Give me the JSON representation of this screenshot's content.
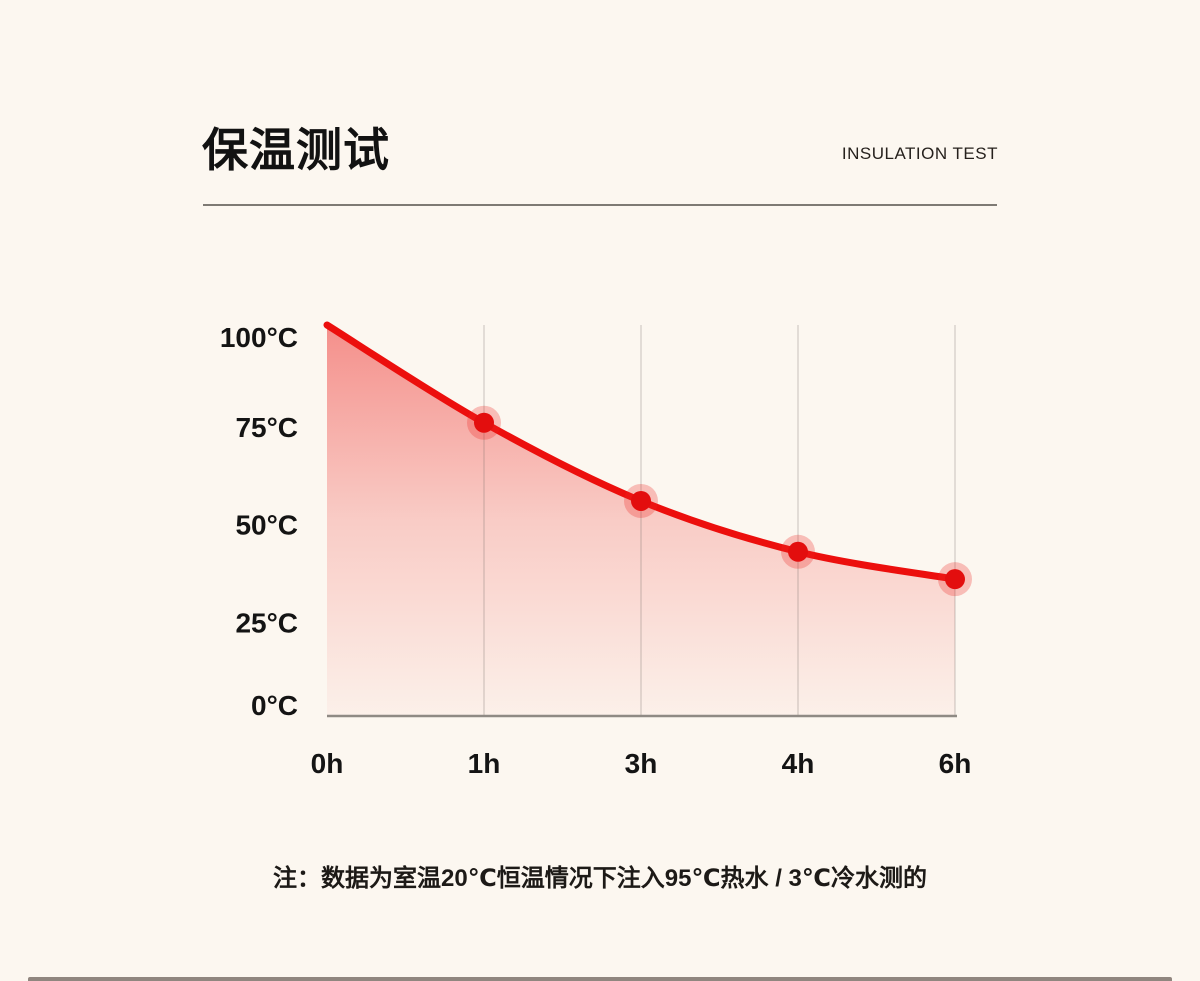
{
  "header": {
    "title": "保温测试",
    "subtitle": "INSULATION TEST"
  },
  "chart_data": {
    "type": "line",
    "categories": [
      "0h",
      "1h",
      "3h",
      "4h",
      "6h"
    ],
    "values": [
      100,
      75,
      55,
      42,
      35
    ],
    "unit": "°C",
    "ylim": [
      0,
      100
    ],
    "yticks": [
      100,
      75,
      50,
      25,
      0
    ],
    "ytick_labels": [
      "100°C",
      "75°C",
      "50°C",
      "25°C",
      "0°C"
    ],
    "xlabel": "",
    "ylabel": "",
    "grid": "vertical-only",
    "legend_position": "none",
    "markers_at": [
      1,
      2,
      3,
      4
    ]
  },
  "note": {
    "text": "注：数据为室温20℃恒温情况下注入95℃热水 / 3℃冷水测的"
  },
  "colors": {
    "background": "#FCF7F0",
    "line_red": "#EC0F0D",
    "marker_red": "#E30E0E",
    "marker_halo": "rgba(236,40,36,0.28)",
    "fill_top": "rgba(236,30,28,0.48)",
    "fill_mid": "rgba(236,30,28,0.20)",
    "fill_bottom": "rgba(236,30,28,0.03)",
    "grid_line": "rgba(110,105,100,0.25)",
    "axis_line": "#8F8A84",
    "divider": "#7E7A74",
    "text_dark": "#141414"
  }
}
